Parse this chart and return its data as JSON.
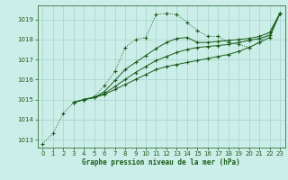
{
  "bg_color": "#cceee8",
  "grid_color": "#aad8d2",
  "line_color": "#1a5c1a",
  "title": "Graphe pression niveau de la mer (hPa)",
  "xlim": [
    -0.5,
    23.5
  ],
  "ylim": [
    1012.6,
    1019.7
  ],
  "yticks": [
    1013,
    1014,
    1015,
    1016,
    1017,
    1018,
    1019
  ],
  "xticks": [
    0,
    1,
    2,
    3,
    4,
    5,
    6,
    7,
    8,
    9,
    10,
    11,
    12,
    13,
    14,
    15,
    16,
    17,
    18,
    19,
    20,
    21,
    22,
    23
  ],
  "series_dotted": {
    "x": [
      0,
      1,
      2,
      3,
      4,
      5,
      6,
      7,
      8,
      9,
      10,
      11,
      12,
      13,
      14,
      15,
      16,
      17,
      18,
      19,
      20,
      21,
      22,
      23
    ],
    "y": [
      1012.8,
      1013.3,
      1014.3,
      1014.85,
      1015.0,
      1015.15,
      1015.7,
      1016.4,
      1017.6,
      1018.0,
      1018.1,
      1019.25,
      1019.3,
      1019.25,
      1018.85,
      1018.45,
      1018.15,
      1018.15,
      1017.85,
      1017.75,
      1017.6,
      1017.85,
      1018.35,
      1019.3
    ]
  },
  "series_solid": [
    {
      "x": [
        3,
        4,
        5,
        6,
        7,
        8,
        9,
        10,
        11,
        12,
        13,
        14,
        15,
        16,
        17,
        18,
        19,
        20,
        21,
        22,
        23
      ],
      "y": [
        1014.85,
        1015.0,
        1015.1,
        1015.25,
        1015.5,
        1015.75,
        1016.0,
        1016.25,
        1016.5,
        1016.65,
        1016.75,
        1016.85,
        1016.95,
        1017.05,
        1017.15,
        1017.25,
        1017.4,
        1017.6,
        1017.85,
        1018.1,
        1019.3
      ]
    },
    {
      "x": [
        3,
        4,
        5,
        6,
        7,
        8,
        9,
        10,
        11,
        12,
        13,
        14,
        15,
        16,
        17,
        18,
        19,
        20,
        21,
        22,
        23
      ],
      "y": [
        1014.85,
        1015.0,
        1015.1,
        1015.3,
        1015.65,
        1016.0,
        1016.35,
        1016.65,
        1016.95,
        1017.15,
        1017.35,
        1017.5,
        1017.6,
        1017.65,
        1017.7,
        1017.75,
        1017.85,
        1017.95,
        1018.05,
        1018.2,
        1019.3
      ]
    },
    {
      "x": [
        3,
        4,
        5,
        6,
        7,
        8,
        9,
        10,
        11,
        12,
        13,
        14,
        15,
        16,
        17,
        18,
        19,
        20,
        21,
        22,
        23
      ],
      "y": [
        1014.85,
        1015.0,
        1015.1,
        1015.4,
        1015.95,
        1016.5,
        1016.85,
        1017.2,
        1017.55,
        1017.85,
        1018.05,
        1018.1,
        1017.85,
        1017.85,
        1017.9,
        1017.95,
        1018.0,
        1018.05,
        1018.15,
        1018.35,
        1019.3
      ]
    }
  ]
}
